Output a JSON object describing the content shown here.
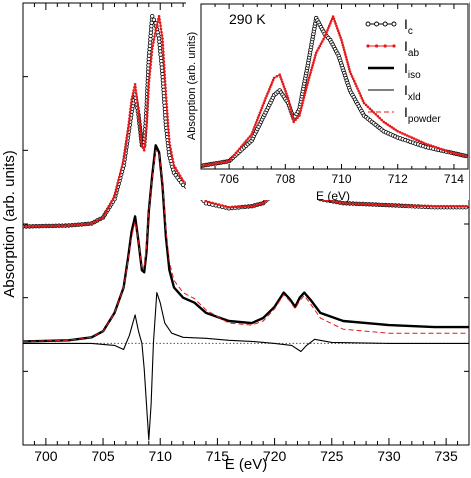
{
  "chart_data": [
    {
      "panel": "main",
      "type": "line",
      "xlabel": "E (eV)",
      "ylabel": "Absorption (arb. units)",
      "xlim": [
        698,
        737
      ],
      "x_ticks": [
        700,
        705,
        710,
        715,
        720,
        725,
        730,
        735
      ],
      "y_ticks_labeled": false,
      "grid": false,
      "reference_line": {
        "style": "dotted",
        "y": 0
      },
      "ylim": [
        -1.0,
        3.35
      ],
      "series": [
        {
          "name": "Ic",
          "color": "#000000",
          "style": "line-open-circles",
          "points": [
            [
              698,
              1.15
            ],
            [
              702,
              1.16
            ],
            [
              704,
              1.18
            ],
            [
              705,
              1.24
            ],
            [
              706,
              1.42
            ],
            [
              706.8,
              1.75
            ],
            [
              707.2,
              2.05
            ],
            [
              707.5,
              2.28
            ],
            [
              707.8,
              2.45
            ],
            [
              708.1,
              2.25
            ],
            [
              708.4,
              1.95
            ],
            [
              708.6,
              1.95
            ],
            [
              708.8,
              2.3
            ],
            [
              709.0,
              2.8
            ],
            [
              709.3,
              3.22
            ],
            [
              709.6,
              3.15
            ],
            [
              709.9,
              3.0
            ],
            [
              710.2,
              2.65
            ],
            [
              710.5,
              2.15
            ],
            [
              710.8,
              1.85
            ],
            [
              711.2,
              1.68
            ],
            [
              712,
              1.56
            ],
            [
              713,
              1.5
            ],
            [
              714,
              1.38
            ],
            [
              716,
              1.33
            ],
            [
              718,
              1.35
            ],
            [
              719,
              1.38
            ],
            [
              720,
              1.48
            ],
            [
              720.8,
              1.6
            ],
            [
              721.3,
              1.55
            ],
            [
              721.8,
              1.48
            ],
            [
              722.2,
              1.56
            ],
            [
              722.6,
              1.62
            ],
            [
              723.2,
              1.52
            ],
            [
              724,
              1.42
            ],
            [
              726,
              1.38
            ],
            [
              730,
              1.36
            ],
            [
              734,
              1.34
            ],
            [
              737,
              1.34
            ]
          ]
        },
        {
          "name": "Iab",
          "color": "#e41a1c",
          "style": "line-filled-dots",
          "points": [
            [
              698,
              1.15
            ],
            [
              702,
              1.16
            ],
            [
              704,
              1.18
            ],
            [
              705,
              1.24
            ],
            [
              706,
              1.45
            ],
            [
              706.8,
              1.8
            ],
            [
              707.2,
              2.12
            ],
            [
              707.5,
              2.4
            ],
            [
              707.8,
              2.55
            ],
            [
              708.1,
              2.28
            ],
            [
              708.4,
              1.95
            ],
            [
              708.6,
              1.9
            ],
            [
              708.8,
              2.15
            ],
            [
              709.0,
              2.55
            ],
            [
              709.3,
              2.9
            ],
            [
              709.6,
              3.08
            ],
            [
              709.9,
              3.22
            ],
            [
              710.2,
              3.0
            ],
            [
              710.5,
              2.45
            ],
            [
              710.8,
              1.98
            ],
            [
              711.2,
              1.75
            ],
            [
              712,
              1.6
            ],
            [
              713,
              1.52
            ],
            [
              714,
              1.4
            ],
            [
              716,
              1.34
            ],
            [
              718,
              1.35
            ],
            [
              719,
              1.38
            ],
            [
              720,
              1.5
            ],
            [
              720.8,
              1.62
            ],
            [
              721.3,
              1.56
            ],
            [
              721.8,
              1.48
            ],
            [
              722.2,
              1.54
            ],
            [
              722.6,
              1.58
            ],
            [
              723.2,
              1.5
            ],
            [
              724,
              1.42
            ],
            [
              726,
              1.38
            ],
            [
              730,
              1.36
            ],
            [
              734,
              1.35
            ],
            [
              737,
              1.35
            ]
          ]
        },
        {
          "name": "Iiso",
          "color": "#000000",
          "style": "thick-line",
          "points": [
            [
              698,
              0.02
            ],
            [
              702,
              0.03
            ],
            [
              704,
              0.06
            ],
            [
              705,
              0.12
            ],
            [
              706,
              0.3
            ],
            [
              706.8,
              0.55
            ],
            [
              707.2,
              0.85
            ],
            [
              707.5,
              1.1
            ],
            [
              707.8,
              1.25
            ],
            [
              708.1,
              1.0
            ],
            [
              708.4,
              0.72
            ],
            [
              708.6,
              0.7
            ],
            [
              708.8,
              0.9
            ],
            [
              709.0,
              1.3
            ],
            [
              709.3,
              1.65
            ],
            [
              709.6,
              1.95
            ],
            [
              709.9,
              1.88
            ],
            [
              710.2,
              1.55
            ],
            [
              710.5,
              1.05
            ],
            [
              710.8,
              0.72
            ],
            [
              711.2,
              0.55
            ],
            [
              712,
              0.45
            ],
            [
              713,
              0.4
            ],
            [
              714,
              0.3
            ],
            [
              716,
              0.22
            ],
            [
              718,
              0.2
            ],
            [
              719,
              0.25
            ],
            [
              720,
              0.36
            ],
            [
              720.8,
              0.5
            ],
            [
              721.3,
              0.44
            ],
            [
              721.8,
              0.36
            ],
            [
              722.2,
              0.45
            ],
            [
              722.6,
              0.5
            ],
            [
              723.2,
              0.42
            ],
            [
              724,
              0.3
            ],
            [
              726,
              0.22
            ],
            [
              730,
              0.18
            ],
            [
              734,
              0.16
            ],
            [
              737,
              0.16
            ]
          ]
        },
        {
          "name": "Ixld",
          "color": "#000000",
          "style": "thin-line",
          "points": [
            [
              698,
              0.0
            ],
            [
              704,
              0.0
            ],
            [
              705,
              -0.01
            ],
            [
              706,
              -0.02
            ],
            [
              706.8,
              -0.06
            ],
            [
              707.3,
              0.08
            ],
            [
              707.8,
              0.28
            ],
            [
              708.1,
              0.12
            ],
            [
              708.4,
              0.0
            ],
            [
              708.6,
              -0.25
            ],
            [
              708.8,
              -0.6
            ],
            [
              709.0,
              -0.95
            ],
            [
              709.2,
              -0.6
            ],
            [
              709.4,
              0.0
            ],
            [
              709.7,
              0.5
            ],
            [
              710.0,
              0.4
            ],
            [
              710.4,
              0.2
            ],
            [
              711,
              0.1
            ],
            [
              712,
              0.06
            ],
            [
              714,
              0.05
            ],
            [
              716,
              0.03
            ],
            [
              718,
              0.02
            ],
            [
              720,
              0.0
            ],
            [
              721.5,
              -0.02
            ],
            [
              722.3,
              -0.08
            ],
            [
              722.8,
              -0.02
            ],
            [
              723.5,
              0.04
            ],
            [
              725,
              0.01
            ],
            [
              730,
              0.0
            ],
            [
              737,
              0.0
            ]
          ]
        },
        {
          "name": "Ipowder",
          "color": "#e41a1c",
          "style": "dashed-line",
          "points": [
            [
              698,
              0.02
            ],
            [
              702,
              0.03
            ],
            [
              704,
              0.06
            ],
            [
              705,
              0.12
            ],
            [
              706,
              0.3
            ],
            [
              706.8,
              0.55
            ],
            [
              707.2,
              0.82
            ],
            [
              707.5,
              1.05
            ],
            [
              707.8,
              1.2
            ],
            [
              708.1,
              1.0
            ],
            [
              708.4,
              0.75
            ],
            [
              708.6,
              0.75
            ],
            [
              708.8,
              0.95
            ],
            [
              709.0,
              1.3
            ],
            [
              709.3,
              1.62
            ],
            [
              709.6,
              1.9
            ],
            [
              709.9,
              1.86
            ],
            [
              710.2,
              1.58
            ],
            [
              710.5,
              1.12
            ],
            [
              710.8,
              0.8
            ],
            [
              711.2,
              0.62
            ],
            [
              712,
              0.5
            ],
            [
              713,
              0.44
            ],
            [
              714,
              0.33
            ],
            [
              716,
              0.2
            ],
            [
              718,
              0.18
            ],
            [
              719,
              0.22
            ],
            [
              720,
              0.34
            ],
            [
              720.8,
              0.48
            ],
            [
              721.3,
              0.42
            ],
            [
              721.8,
              0.34
            ],
            [
              722.2,
              0.42
            ],
            [
              722.6,
              0.47
            ],
            [
              723.2,
              0.38
            ],
            [
              724,
              0.25
            ],
            [
              726,
              0.14
            ],
            [
              730,
              0.1
            ],
            [
              734,
              0.1
            ],
            [
              737,
              0.1
            ]
          ]
        }
      ]
    },
    {
      "panel": "inset",
      "type": "line",
      "annotation": "290 K",
      "xlabel": "E (eV)",
      "ylabel": "Absorption (arb. units)",
      "xlim": [
        705,
        714.5
      ],
      "ylim": [
        0,
        1.05
      ],
      "x_ticks": [
        706,
        708,
        710,
        712,
        714
      ],
      "grid": false,
      "legend": {
        "placement": "top-right",
        "entries": [
          {
            "main": "I",
            "sub": "c",
            "color": "#000000",
            "marker": "open-circle",
            "line": "solid"
          },
          {
            "main": "I",
            "sub": "ab",
            "color": "#e41a1c",
            "marker": "filled-dot",
            "line": "solid"
          },
          {
            "main": "I",
            "sub": "iso",
            "color": "#000000",
            "marker": "none",
            "line": "thick"
          },
          {
            "main": "I",
            "sub": "xld",
            "color": "#000000",
            "marker": "none",
            "line": "thin"
          },
          {
            "main": "I",
            "sub": "powder",
            "color": "#e41a1c",
            "marker": "none",
            "line": "dashed"
          }
        ]
      },
      "series": [
        {
          "name": "Ic",
          "color": "#000000",
          "style": "line-open-circles",
          "points": [
            [
              705,
              0.02
            ],
            [
              706,
              0.05
            ],
            [
              706.8,
              0.18
            ],
            [
              707.3,
              0.36
            ],
            [
              707.6,
              0.47
            ],
            [
              707.8,
              0.5
            ],
            [
              708.1,
              0.42
            ],
            [
              708.3,
              0.32
            ],
            [
              708.5,
              0.38
            ],
            [
              708.8,
              0.66
            ],
            [
              709.1,
              0.96
            ],
            [
              709.4,
              0.86
            ],
            [
              709.6,
              0.82
            ],
            [
              709.9,
              0.72
            ],
            [
              710.3,
              0.5
            ],
            [
              710.8,
              0.34
            ],
            [
              711.5,
              0.24
            ],
            [
              712,
              0.2
            ],
            [
              713,
              0.14
            ],
            [
              714,
              0.1
            ],
            [
              714.5,
              0.08
            ]
          ]
        },
        {
          "name": "Iab",
          "color": "#e41a1c",
          "style": "line-filled-dots",
          "points": [
            [
              705,
              0.02
            ],
            [
              706,
              0.05
            ],
            [
              706.8,
              0.22
            ],
            [
              707.3,
              0.45
            ],
            [
              707.6,
              0.58
            ],
            [
              707.8,
              0.6
            ],
            [
              708.1,
              0.45
            ],
            [
              708.3,
              0.3
            ],
            [
              708.5,
              0.34
            ],
            [
              708.8,
              0.55
            ],
            [
              709.1,
              0.74
            ],
            [
              709.4,
              0.84
            ],
            [
              709.7,
              0.97
            ],
            [
              710.0,
              0.82
            ],
            [
              710.3,
              0.62
            ],
            [
              710.8,
              0.42
            ],
            [
              711.5,
              0.3
            ],
            [
              712,
              0.24
            ],
            [
              713,
              0.16
            ],
            [
              714,
              0.1
            ],
            [
              714.5,
              0.08
            ]
          ]
        }
      ]
    }
  ]
}
